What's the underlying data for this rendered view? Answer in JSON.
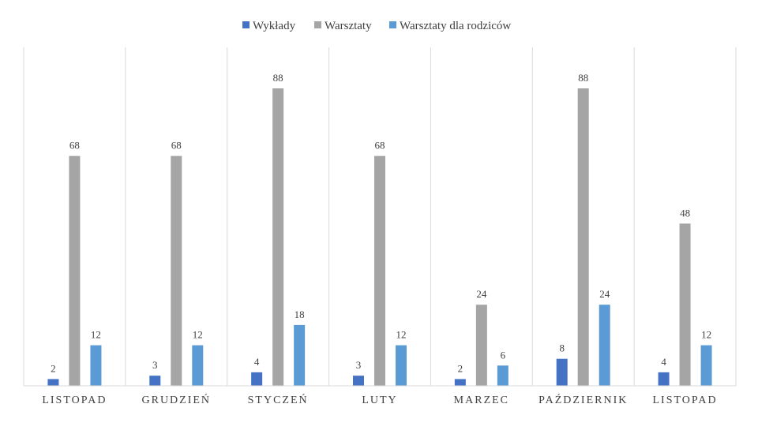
{
  "chart_data": {
    "type": "bar",
    "title": "",
    "xlabel": "",
    "ylabel": "",
    "ylim": [
      0,
      88
    ],
    "grid": false,
    "category_separators": true,
    "legend_position": "top-center",
    "data_labels": true,
    "categories": [
      "LISTOPAD",
      "GRUDZIEŃ",
      "STYCZEŃ",
      "LUTY",
      "MARZEC",
      "PAŹDZIERNIK",
      "LISTOPAD"
    ],
    "series": [
      {
        "name": "Wykłady",
        "color": "#4472c4",
        "values": [
          2,
          3,
          4,
          3,
          2,
          8,
          4
        ]
      },
      {
        "name": "Warsztaty",
        "color": "#a5a5a5",
        "values": [
          68,
          68,
          88,
          68,
          24,
          88,
          48
        ]
      },
      {
        "name": "Warsztaty dla rodziców",
        "color": "#5b9bd5",
        "values": [
          12,
          12,
          18,
          12,
          6,
          24,
          12
        ]
      }
    ]
  }
}
